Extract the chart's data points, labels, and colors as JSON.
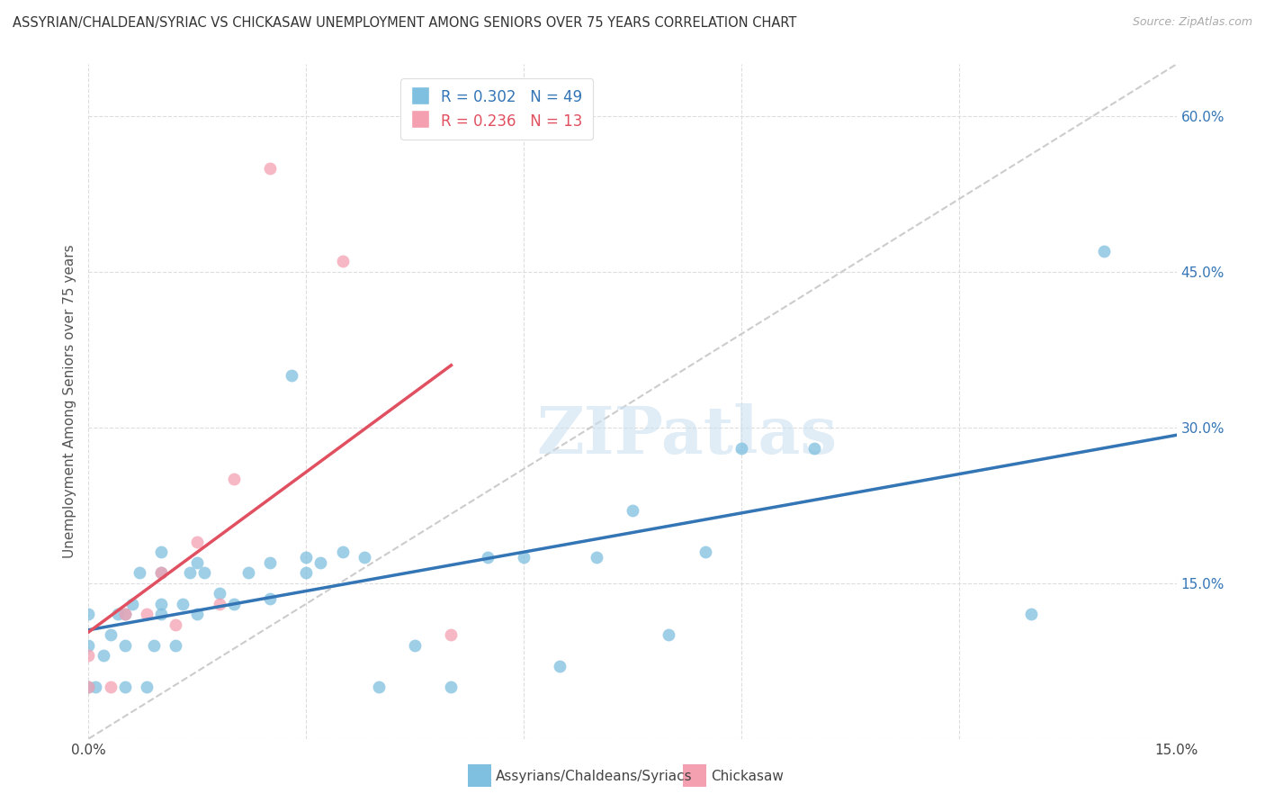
{
  "title": "ASSYRIAN/CHALDEAN/SYRIAC VS CHICKASAW UNEMPLOYMENT AMONG SENIORS OVER 75 YEARS CORRELATION CHART",
  "source": "Source: ZipAtlas.com",
  "ylabel": "Unemployment Among Seniors over 75 years",
  "xlim": [
    0.0,
    0.15
  ],
  "ylim": [
    0.0,
    0.65
  ],
  "legend_labels": [
    "Assyrians/Chaldeans/Syriacs",
    "Chickasaw"
  ],
  "blue_color": "#7fbfdf",
  "pink_color": "#f4a0b0",
  "blue_line_color": "#3375b5",
  "pink_line_color": "#e05060",
  "diagonal_color": "#cccccc",
  "watermark": "ZIPatlas",
  "R_blue": 0.302,
  "N_blue": 49,
  "R_pink": 0.236,
  "N_pink": 13,
  "blue_x": [
    0.0,
    0.0,
    0.0,
    0.001,
    0.002,
    0.003,
    0.004,
    0.005,
    0.005,
    0.005,
    0.006,
    0.007,
    0.008,
    0.009,
    0.01,
    0.01,
    0.01,
    0.01,
    0.012,
    0.013,
    0.014,
    0.015,
    0.015,
    0.016,
    0.018,
    0.02,
    0.022,
    0.025,
    0.025,
    0.028,
    0.03,
    0.03,
    0.032,
    0.035,
    0.038,
    0.04,
    0.045,
    0.05,
    0.055,
    0.06,
    0.065,
    0.07,
    0.075,
    0.08,
    0.085,
    0.09,
    0.1,
    0.13,
    0.14
  ],
  "blue_y": [
    0.05,
    0.09,
    0.12,
    0.05,
    0.08,
    0.1,
    0.12,
    0.05,
    0.09,
    0.12,
    0.13,
    0.16,
    0.05,
    0.09,
    0.12,
    0.13,
    0.16,
    0.18,
    0.09,
    0.13,
    0.16,
    0.12,
    0.17,
    0.16,
    0.14,
    0.13,
    0.16,
    0.135,
    0.17,
    0.35,
    0.16,
    0.175,
    0.17,
    0.18,
    0.175,
    0.05,
    0.09,
    0.05,
    0.175,
    0.175,
    0.07,
    0.175,
    0.22,
    0.1,
    0.18,
    0.28,
    0.28,
    0.12,
    0.47
  ],
  "pink_x": [
    0.0,
    0.0,
    0.003,
    0.005,
    0.008,
    0.01,
    0.012,
    0.015,
    0.018,
    0.02,
    0.025,
    0.035,
    0.05
  ],
  "pink_y": [
    0.05,
    0.08,
    0.05,
    0.12,
    0.12,
    0.16,
    0.11,
    0.19,
    0.13,
    0.25,
    0.55,
    0.46,
    0.1
  ]
}
